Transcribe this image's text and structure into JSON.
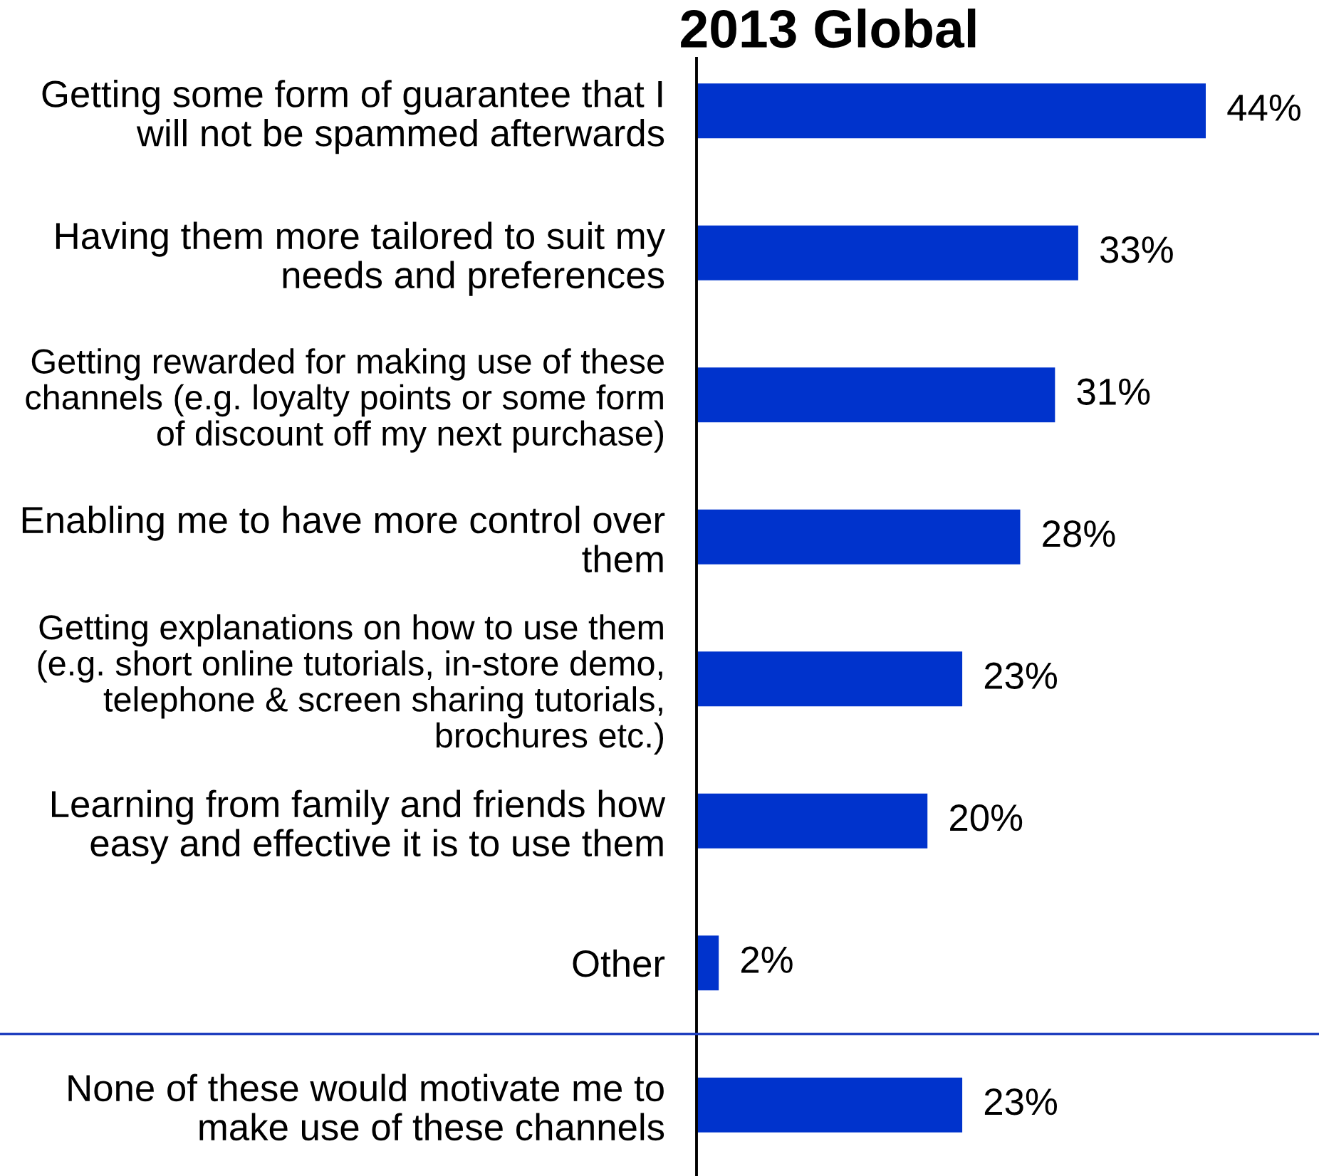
{
  "chart_data": [
    {
      "type": "bar",
      "orientation": "horizontal",
      "title": "2013 Global",
      "categories": [
        "Getting some form of guarantee that I will not be spammed afterwards",
        "Having them more tailored to suit my needs and preferences",
        "Getting rewarded for making use of these channels (e.g. loyalty points or some form of discount off my next purchase)",
        "Enabling me to have more control over them",
        "Getting explanations on how to use them (e.g. short online tutorials, in-store demo, telephone & screen sharing tutorials, brochures etc.)",
        "Learning from family and friends how easy and effective it is to use them",
        "Other"
      ],
      "values": [
        44,
        33,
        31,
        28,
        23,
        20,
        2
      ],
      "value_labels": [
        "44%",
        "33%",
        "31%",
        "28%",
        "23%",
        "20%",
        "2%"
      ],
      "color": "#0033cc",
      "tick_labels": "y"
    },
    {
      "type": "bar",
      "orientation": "horizontal",
      "categories": [
        "None of these would motivate me to make use of these channels"
      ],
      "values": [
        23
      ],
      "value_labels": [
        "23%"
      ],
      "color": "#0033cc",
      "tick_labels": "y"
    }
  ]
}
